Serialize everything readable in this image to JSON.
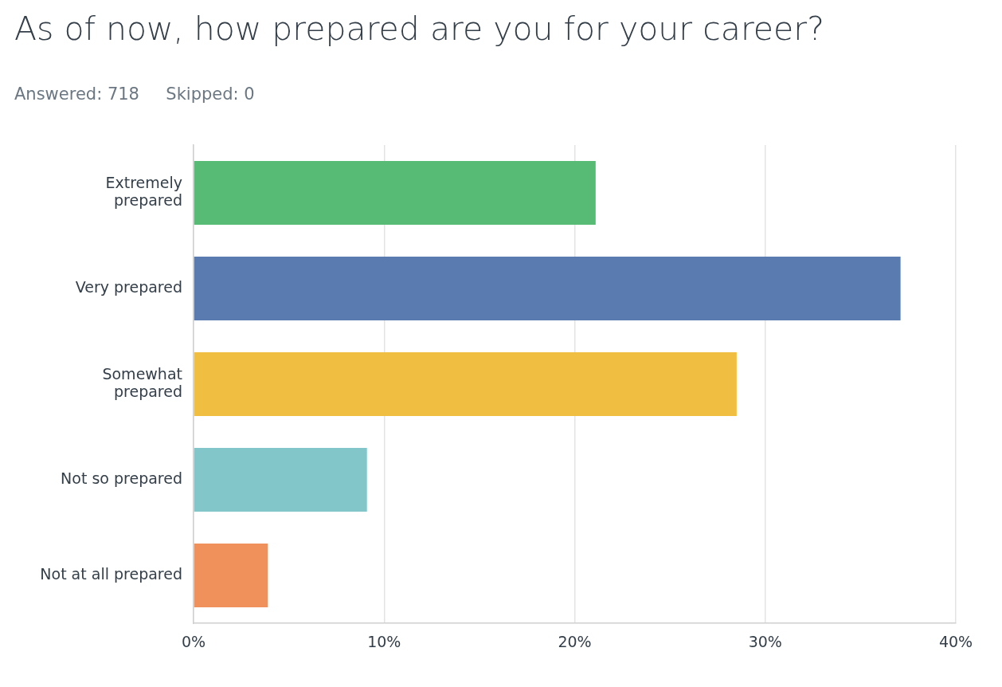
{
  "chart_data": {
    "type": "bar",
    "orientation": "horizontal",
    "title": "As of now, how prepared are you for your career?",
    "subtitle": "Answered: 718     Skipped: 0",
    "categories": [
      "Extremely prepared",
      "Very prepared",
      "Somewhat prepared",
      "Not so prepared",
      "Not at all prepared"
    ],
    "values": [
      21.1,
      37.1,
      28.5,
      9.1,
      3.9
    ],
    "colors": [
      "#57bb76",
      "#5a7baf",
      "#f0be41",
      "#82c6ca",
      "#f0905a"
    ],
    "xlim": [
      0,
      40
    ],
    "xticks": [
      {
        "value": 0,
        "label": "0%"
      },
      {
        "value": 10,
        "label": "10%"
      },
      {
        "value": 20,
        "label": "20%"
      },
      {
        "value": 30,
        "label": "30%"
      },
      {
        "value": 40,
        "label": "40%"
      }
    ],
    "grid": "x",
    "legend": false
  }
}
